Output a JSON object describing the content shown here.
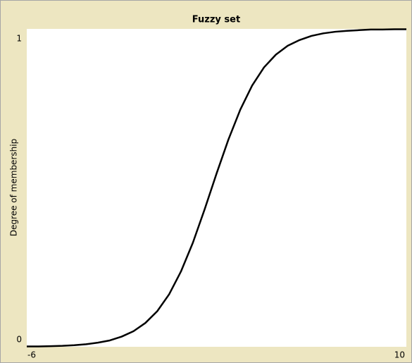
{
  "chart_data": {
    "type": "line",
    "title": "Fuzzy set",
    "ylabel": "Degree of membership",
    "x": [
      -6,
      -5.5,
      -5,
      -4.5,
      -4,
      -3.5,
      -3,
      -2.5,
      -2,
      -1.5,
      -1,
      -0.5,
      0,
      0.5,
      1,
      1.5,
      2,
      2.5,
      3,
      3.5,
      4,
      4.5,
      5,
      5.5,
      6,
      6.5,
      7,
      7.5,
      8,
      8.5,
      9,
      9.5,
      10
    ],
    "values": [
      0.001,
      0.001,
      0.002,
      0.003,
      0.005,
      0.008,
      0.013,
      0.02,
      0.032,
      0.049,
      0.075,
      0.112,
      0.165,
      0.237,
      0.327,
      0.433,
      0.545,
      0.652,
      0.746,
      0.822,
      0.879,
      0.919,
      0.947,
      0.965,
      0.978,
      0.986,
      0.991,
      0.994,
      0.996,
      0.998,
      0.998,
      0.999,
      0.999
    ],
    "color": "#000000",
    "xlim": [
      -6,
      10
    ],
    "xticks": [
      -6,
      10
    ],
    "ylim": [
      0,
      1
    ],
    "yticks": [
      0,
      1
    ]
  }
}
